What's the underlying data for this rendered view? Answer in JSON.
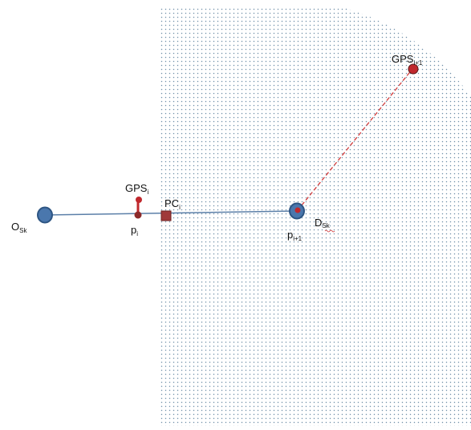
{
  "labels": {
    "origin": {
      "main": "O",
      "sub": "Sk"
    },
    "gps_i": {
      "main": "GPS",
      "sub": "i"
    },
    "p_i": {
      "main": "p",
      "sub": "i"
    },
    "pc_i": {
      "main": "PC",
      "sub": "i"
    },
    "p_next": {
      "main": "p",
      "sub": "i+1"
    },
    "destination": {
      "main": "D",
      "sub": "Sk"
    },
    "gps_next": {
      "main": "GPS",
      "sub": "i+1"
    }
  },
  "colors": {
    "region_dots": "#6f8fa8",
    "track_line": "#5b7fa8",
    "node_fill": "#4a77ad",
    "node_stroke": "#2d5583",
    "gps_point": "#c0282d",
    "gps_dark": "#8c2a2a",
    "pc_square": "#a0393a",
    "dashed_line": "#d23a3a"
  }
}
